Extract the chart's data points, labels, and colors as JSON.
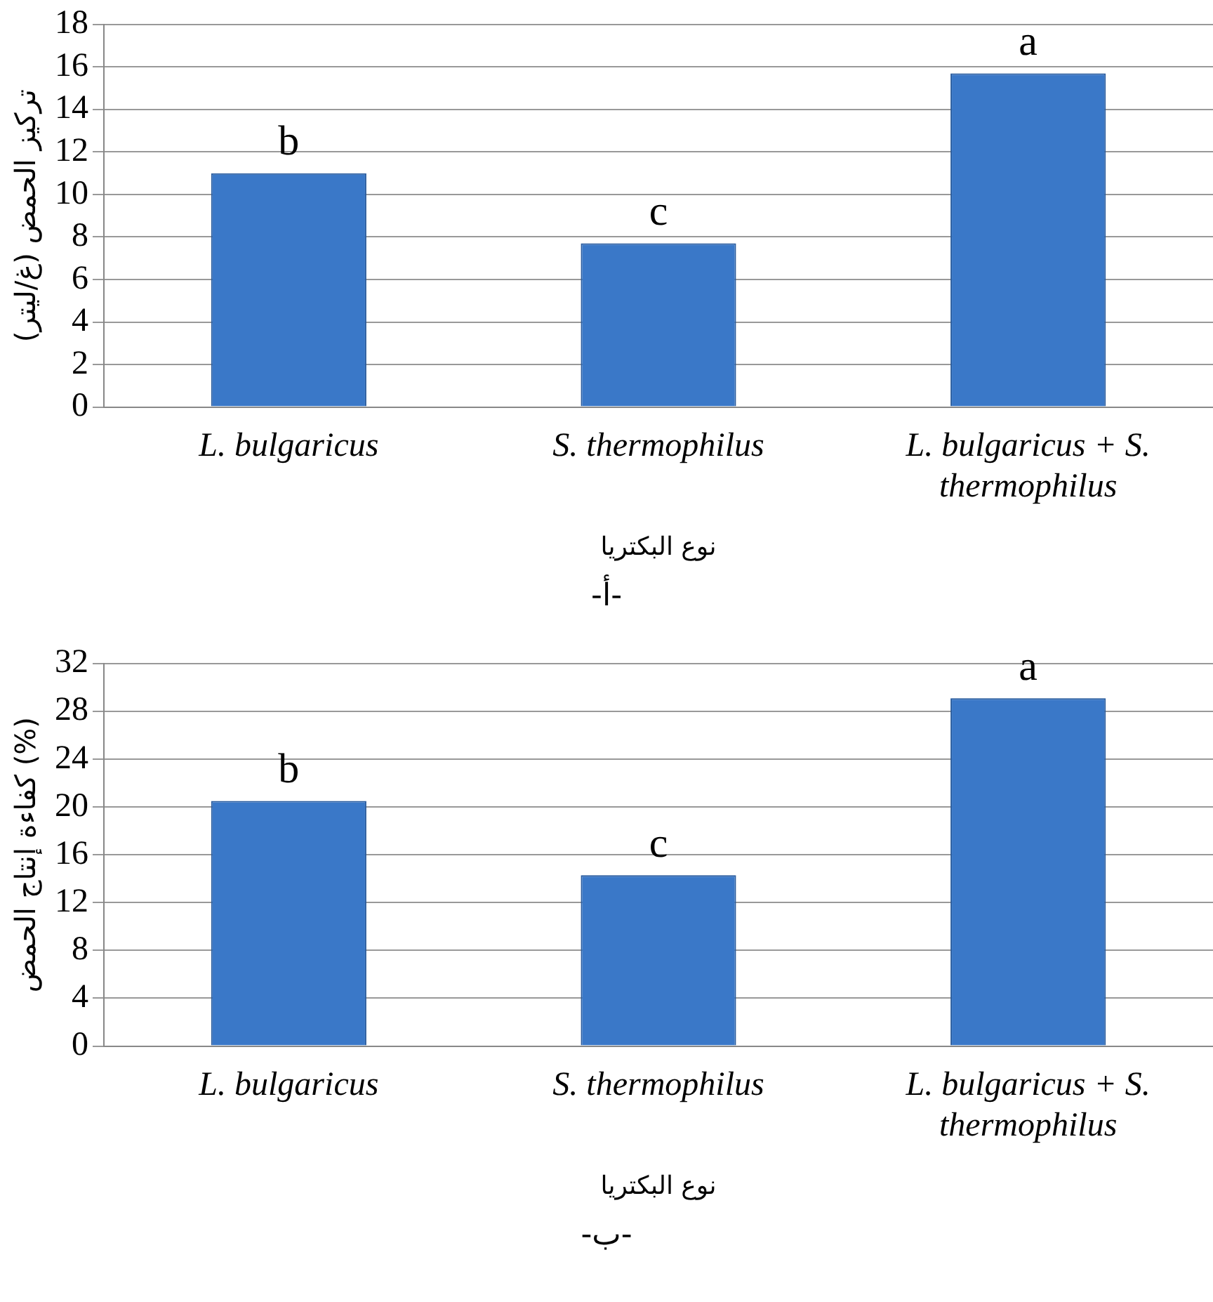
{
  "chart_data": [
    {
      "type": "bar",
      "categories": [
        "L. bulgaricus",
        "S. thermophilus",
        "L. bulgaricus + S. thermophilus"
      ],
      "values": [
        11.0,
        7.7,
        15.7
      ],
      "color": "#3a78c8",
      "ylabel": "تركيز الحمض (غ/ليتر)",
      "xlabel": "نوع البكتريا",
      "ylim": [
        0,
        18
      ],
      "yticks": [
        0,
        2,
        4,
        6,
        8,
        10,
        12,
        14,
        16,
        18
      ],
      "grid": "y",
      "legend": false,
      "annotations": [
        {
          "text": "b",
          "x": "L. bulgaricus",
          "y": 11.0
        },
        {
          "text": "c",
          "x": "S. thermophilus",
          "y": 7.7
        },
        {
          "text": "a",
          "x": "L. bulgaricus + S. thermophilus",
          "y": 15.7
        },
        "-أ-"
      ]
    },
    {
      "type": "bar",
      "categories": [
        "L. bulgaricus",
        "S. thermophilus",
        "L. bulgaricus + S. thermophilus"
      ],
      "values": [
        20.5,
        14.3,
        29.1
      ],
      "color": "#3a78c8",
      "ylabel": "كفاءة إنتاج الحمض (%)",
      "xlabel": "نوع البكتريا",
      "ylim": [
        0,
        32
      ],
      "yticks": [
        0,
        4,
        8,
        12,
        16,
        20,
        24,
        28,
        32
      ],
      "grid": "y",
      "legend": false,
      "annotations": [
        {
          "text": "b",
          "x": "L. bulgaricus",
          "y": 20.5
        },
        {
          "text": "c",
          "x": "S. thermophilus",
          "y": 14.3
        },
        {
          "text": "a",
          "x": "L. bulgaricus + S. thermophilus",
          "y": 29.1
        },
        "-ب-"
      ]
    }
  ]
}
